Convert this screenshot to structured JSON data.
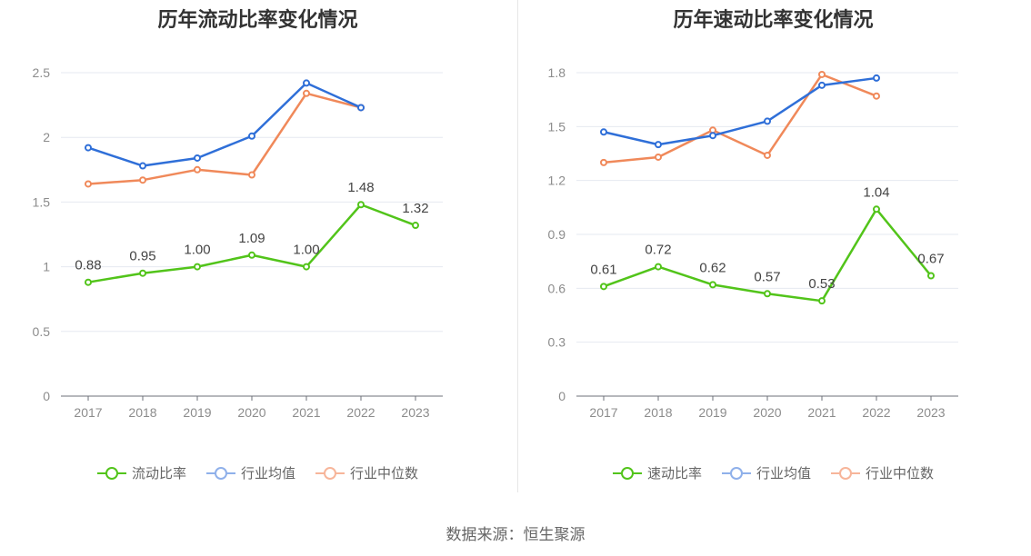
{
  "chart_data": [
    {
      "type": "line",
      "title": "历年流动比率变化情况",
      "categories": [
        "2017",
        "2018",
        "2019",
        "2020",
        "2021",
        "2022",
        "2023"
      ],
      "ylim": [
        0,
        2.5
      ],
      "yticks": [
        "0",
        "0.5",
        "1",
        "1.5",
        "2",
        "2.5"
      ],
      "ytick_values": [
        0,
        0.5,
        1,
        1.5,
        2,
        2.5
      ],
      "grid": true,
      "legend_position": "bottom",
      "series": [
        {
          "name": "流动比率",
          "color": "#52c41a",
          "values": [
            0.88,
            0.95,
            1.0,
            1.09,
            1.0,
            1.48,
            1.32
          ],
          "labels": [
            "0.88",
            "0.95",
            "1.00",
            "1.09",
            "1.00",
            "1.48",
            "1.32"
          ],
          "show_labels": true
        },
        {
          "name": "行业均值",
          "color": "#2f6fd8",
          "values": [
            1.92,
            1.78,
            1.84,
            2.01,
            2.42,
            2.23,
            null
          ],
          "show_labels": false
        },
        {
          "name": "行业中位数",
          "color": "#f0895a",
          "values": [
            1.64,
            1.67,
            1.75,
            1.71,
            2.34,
            2.23,
            null
          ],
          "show_labels": false
        }
      ]
    },
    {
      "type": "line",
      "title": "历年速动比率变化情况",
      "categories": [
        "2017",
        "2018",
        "2019",
        "2020",
        "2021",
        "2022",
        "2023"
      ],
      "ylim": [
        0,
        1.8
      ],
      "yticks": [
        "0",
        "0.3",
        "0.6",
        "0.9",
        "1.2",
        "1.5",
        "1.8"
      ],
      "ytick_values": [
        0,
        0.3,
        0.6,
        0.9,
        1.2,
        1.5,
        1.8
      ],
      "grid": true,
      "legend_position": "bottom",
      "series": [
        {
          "name": "速动比率",
          "color": "#52c41a",
          "values": [
            0.61,
            0.72,
            0.62,
            0.57,
            0.53,
            1.04,
            0.67
          ],
          "labels": [
            "0.61",
            "0.72",
            "0.62",
            "0.57",
            "0.53",
            "1.04",
            "0.67"
          ],
          "show_labels": true
        },
        {
          "name": "行业均值",
          "color": "#2f6fd8",
          "values": [
            1.47,
            1.4,
            1.45,
            1.53,
            1.73,
            1.77,
            null
          ],
          "show_labels": false
        },
        {
          "name": "行业中位数",
          "color": "#f0895a",
          "values": [
            1.3,
            1.33,
            1.48,
            1.34,
            1.79,
            1.67,
            null
          ],
          "show_labels": false
        }
      ]
    }
  ],
  "legend_colors": {
    "流动比率": "#52c41a",
    "速动比率": "#52c41a",
    "行业均值": "#8fb0ea",
    "行业中位数": "#f7b59a"
  },
  "source": "数据来源：恒生聚源"
}
